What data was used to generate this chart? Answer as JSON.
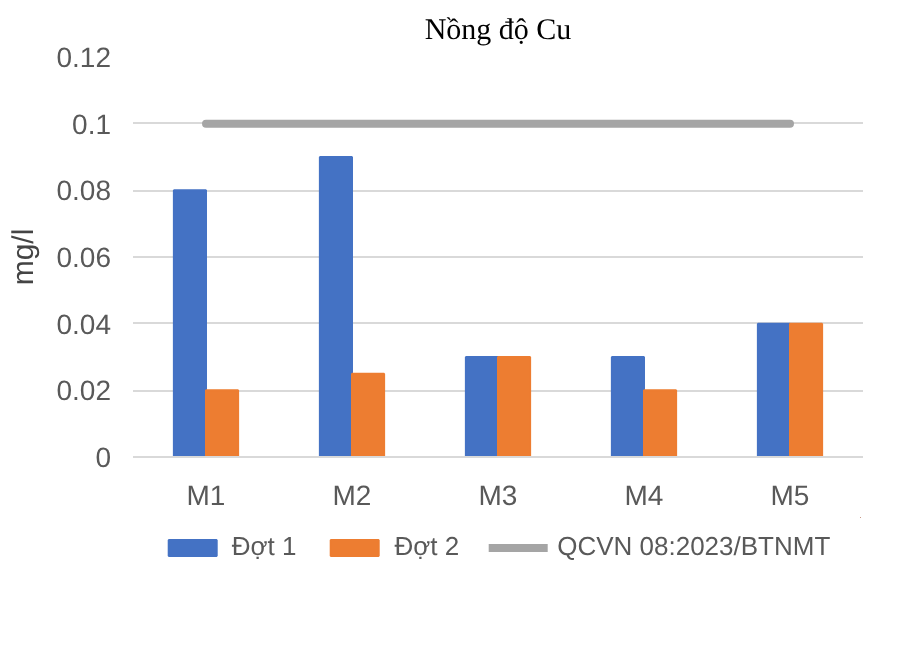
{
  "chart_data": {
    "type": "bar",
    "title": "Nồng độ Cu",
    "ylabel": "mg/l",
    "categories": [
      "M1",
      "M2",
      "M3",
      "M4",
      "M5"
    ],
    "series": [
      {
        "name": "Đợt 1",
        "color": "#4472c4",
        "values": [
          0.08,
          0.09,
          0.03,
          0.03,
          0.04
        ]
      },
      {
        "name": "Đợt 2",
        "color": "#ed7d31",
        "values": [
          0.02,
          0.025,
          0.03,
          0.02,
          0.04
        ]
      },
      {
        "name": "QCVN 08:2023/BTNMT",
        "type": "line",
        "color": "#a5a5a5",
        "values": [
          0.1,
          0.1,
          0.1,
          0.1,
          0.1
        ]
      }
    ],
    "ylim": [
      0,
      0.12
    ],
    "yticks": [
      0,
      {
        "value": 0.02,
        "label": "0.02"
      },
      {
        "value": 0.04,
        "label": "0.04"
      },
      {
        "value": 0.06,
        "label": "0.06"
      },
      {
        "value": 0.08,
        "label": "0.08"
      },
      {
        "value": 0.1,
        "label": "0.1"
      },
      {
        "value": 0.12,
        "label": "0.12"
      }
    ],
    "grid": "y",
    "legend": "bottom"
  }
}
